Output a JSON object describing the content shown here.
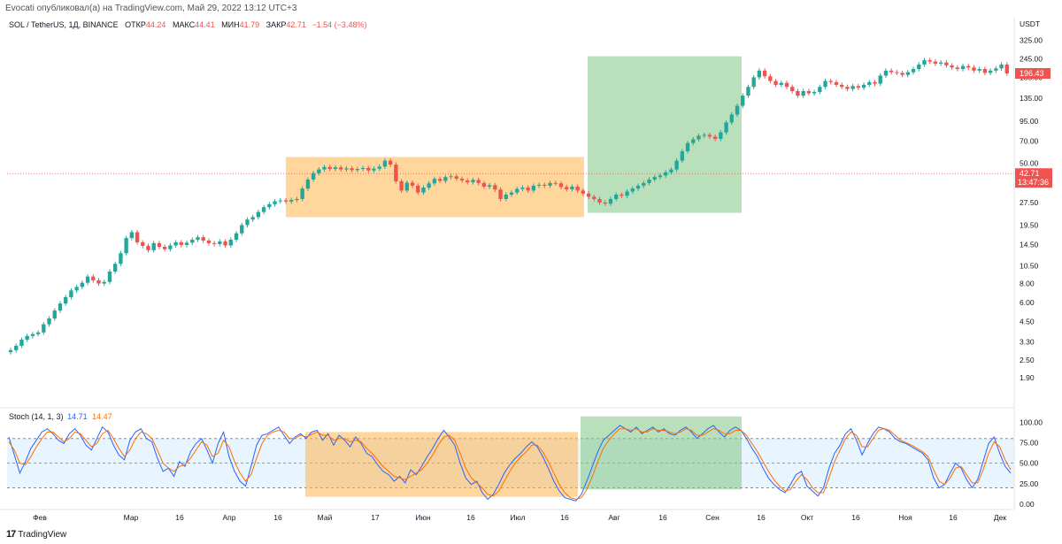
{
  "header": {
    "publisher_line": "Evocati опубликовал(а) на TradingView.com, Май 29, 2022 13:12 UTC+3"
  },
  "symbol": {
    "name": "SOL / TetherUS, 1Д, BINANCE",
    "open_label": "ОТКР",
    "open_value": "44.24",
    "high_label": "МАКС",
    "high_value": "44.41",
    "low_label": "МИН",
    "low_value": "41.79",
    "close_label": "ЗАКР",
    "close_value": "42.71",
    "change_value": "−1.54 (−3.48%)"
  },
  "stoch_legend": {
    "name": "Stoch (14, 1, 3)",
    "k_value": "14.71",
    "d_value": "14.47"
  },
  "footer": {
    "brand": "TradingView",
    "mark": "17"
  },
  "colors": {
    "up": "#26a69a",
    "down": "#ef5350",
    "zone_orange": "#ffb74d",
    "zone_green": "#81c784",
    "stoch_k": "#2962ff",
    "stoch_d": "#ff6d00",
    "stoch_band": "#2196f3",
    "price_tag": "#ef5350"
  },
  "chart_data": [
    {
      "type": "candlestick",
      "ylabel": "USDT",
      "y_scale": "log",
      "ylim": [
        1.6,
        370
      ],
      "y_ticks": [
        "325.00",
        "245.00",
        "185.00",
        "135.00",
        "95.00",
        "70.00",
        "50.00",
        "37.50",
        "27.50",
        "19.50",
        "14.50",
        "10.50",
        "8.00",
        "6.00",
        "4.50",
        "3.30",
        "2.50",
        "1.90"
      ],
      "x_ticks": [
        "Фев",
        "Мар",
        "16",
        "Апр",
        "16",
        "Май",
        "17",
        "Июн",
        "16",
        "Июл",
        "16",
        "Авг",
        "16",
        "Сен",
        "16",
        "Окт",
        "16",
        "Ноя",
        "16",
        "Дек"
      ],
      "price_tags": [
        {
          "value": "196.43",
          "label": "196.43"
        },
        {
          "value": "42.71",
          "label": "42.71",
          "sublabel": "13:47:36"
        }
      ],
      "series": [
        {
          "name": "",
          "close_path": [
            2.9,
            3.1,
            3.4,
            3.6,
            3.7,
            3.8,
            4.3,
            4.7,
            5.3,
            5.9,
            6.5,
            7.2,
            7.6,
            8.1,
            8.9,
            8.4,
            8.0,
            8.2,
            9.6,
            10.8,
            12.7,
            16.0,
            17.5,
            15.0,
            14.2,
            13.3,
            14.8,
            14.0,
            13.5,
            14.3,
            15.0,
            14.4,
            14.9,
            15.6,
            16.2,
            15.4,
            14.8,
            14.6,
            15.2,
            14.3,
            15.6,
            17.2,
            19.5,
            21.2,
            22.0,
            23.8,
            25.6,
            26.8,
            28.0,
            28.4,
            27.9,
            28.6,
            29.0,
            34.0,
            39.0,
            43.0,
            45.5,
            47.2,
            45.8,
            47.0,
            45.5,
            46.3,
            45.0,
            45.8,
            46.5,
            44.8,
            46.0,
            47.5,
            52.0,
            49.0,
            38.0,
            33.0,
            37.2,
            35.5,
            32.0,
            34.5,
            36.8,
            39.4,
            38.2,
            40.5,
            41.0,
            39.5,
            38.5,
            37.4,
            38.8,
            37.0,
            35.0,
            35.8,
            33.5,
            29.0,
            31.0,
            32.0,
            33.8,
            34.5,
            33.0,
            35.5,
            36.0,
            35.5,
            37.0,
            36.8,
            34.8,
            33.6,
            35.0,
            33.0,
            31.5,
            30.0,
            29.0,
            27.5,
            27.0,
            29.0,
            31.0,
            30.5,
            32.5,
            34.0,
            35.5,
            37.0,
            39.0,
            40.5,
            41.5,
            43.5,
            45.5,
            52.0,
            60.0,
            68.0,
            72.0,
            76.0,
            77.0,
            75.0,
            72.5,
            80.0,
            93.0,
            105.0,
            120.0,
            140.0,
            160.0,
            185.0,
            205.0,
            188.0,
            175.0,
            165.0,
            170.0,
            160.0,
            150.0,
            140.0,
            150.0,
            145.0,
            148.0,
            160.0,
            175.0,
            172.0,
            165.0,
            160.0,
            155.0,
            162.0,
            158.0,
            165.0,
            172.0,
            168.0,
            190.0,
            205.0,
            200.0,
            198.0,
            192.0,
            200.0,
            210.0,
            225.0,
            240.0,
            235.0,
            228.0,
            232.0,
            222.0,
            215.0,
            210.0,
            220.0,
            215.0,
            205.0,
            210.0,
            198.0,
            205.0,
            212.0,
            225.0,
            196.43
          ]
        }
      ],
      "zones": [
        {
          "color": "orange",
          "from_date": "Апр 20",
          "to_date": "Июл 22",
          "y_low": 22.0,
          "y_high": 55.0
        },
        {
          "color": "green",
          "from_date": "Июл 24",
          "to_date": "Сен 10",
          "y_low": 23.5,
          "y_high": 255.0
        }
      ]
    },
    {
      "type": "line",
      "title": "Stoch (14, 1, 3)",
      "ylim": [
        0,
        110
      ],
      "y_ticks": [
        "100.00",
        "75.00",
        "50.00",
        "25.00",
        "0.00"
      ],
      "bands": [
        20,
        50,
        80
      ],
      "series": [
        {
          "name": "14.71",
          "values": [
            82,
            60,
            38,
            52,
            68,
            78,
            88,
            92,
            86,
            78,
            74,
            86,
            92,
            84,
            72,
            66,
            80,
            94,
            88,
            72,
            60,
            54,
            78,
            88,
            92,
            80,
            76,
            56,
            40,
            44,
            34,
            52,
            46,
            64,
            74,
            80,
            66,
            50,
            74,
            88,
            58,
            40,
            28,
            22,
            46,
            72,
            84,
            86,
            90,
            94,
            84,
            74,
            82,
            86,
            80,
            88,
            90,
            78,
            86,
            72,
            84,
            78,
            70,
            82,
            74,
            62,
            58,
            48,
            40,
            36,
            28,
            34,
            26,
            42,
            36,
            46,
            58,
            68,
            80,
            90,
            82,
            72,
            50,
            32,
            24,
            28,
            14,
            6,
            12,
            24,
            38,
            48,
            56,
            62,
            70,
            76,
            70,
            58,
            44,
            28,
            16,
            8,
            6,
            4,
            12,
            28,
            46,
            64,
            78,
            84,
            90,
            96,
            92,
            88,
            94,
            86,
            90,
            94,
            88,
            92,
            86,
            84,
            90,
            94,
            88,
            80,
            86,
            92,
            96,
            88,
            82,
            90,
            94,
            90,
            80,
            68,
            58,
            44,
            32,
            24,
            18,
            14,
            24,
            36,
            40,
            22,
            16,
            10,
            20,
            44,
            62,
            72,
            86,
            92,
            78,
            60,
            74,
            86,
            94,
            92,
            88,
            80,
            76,
            74,
            70,
            66,
            62,
            54,
            32,
            20,
            24,
            38,
            50,
            44,
            30,
            20,
            30,
            52,
            74,
            82,
            62,
            46,
            38
          ]
        },
        {
          "name": "14.47",
          "values": [
            76,
            66,
            50,
            48,
            58,
            70,
            80,
            88,
            88,
            82,
            76,
            80,
            88,
            86,
            78,
            70,
            74,
            86,
            90,
            80,
            68,
            58,
            66,
            80,
            88,
            86,
            80,
            66,
            50,
            44,
            40,
            46,
            48,
            56,
            66,
            76,
            72,
            58,
            62,
            78,
            70,
            52,
            38,
            28,
            36,
            56,
            74,
            84,
            88,
            90,
            88,
            80,
            80,
            84,
            82,
            85,
            88,
            84,
            84,
            78,
            80,
            80,
            76,
            78,
            76,
            68,
            62,
            54,
            46,
            40,
            34,
            32,
            30,
            34,
            38,
            42,
            50,
            60,
            72,
            82,
            84,
            78,
            62,
            44,
            32,
            26,
            20,
            12,
            10,
            16,
            28,
            40,
            50,
            58,
            64,
            72,
            72,
            64,
            52,
            38,
            24,
            14,
            8,
            6,
            8,
            18,
            34,
            52,
            68,
            78,
            86,
            92,
            92,
            90,
            92,
            88,
            88,
            92,
            90,
            90,
            88,
            86,
            88,
            92,
            90,
            84,
            84,
            88,
            92,
            90,
            86,
            86,
            90,
            90,
            84,
            74,
            64,
            52,
            40,
            30,
            22,
            16,
            18,
            28,
            36,
            30,
            20,
            14,
            14,
            32,
            52,
            66,
            80,
            88,
            84,
            70,
            70,
            80,
            90,
            92,
            90,
            84,
            78,
            75,
            72,
            68,
            64,
            58,
            42,
            28,
            24,
            32,
            44,
            46,
            36,
            26,
            26,
            42,
            62,
            76,
            70,
            54,
            42
          ]
        }
      ]
    }
  ]
}
